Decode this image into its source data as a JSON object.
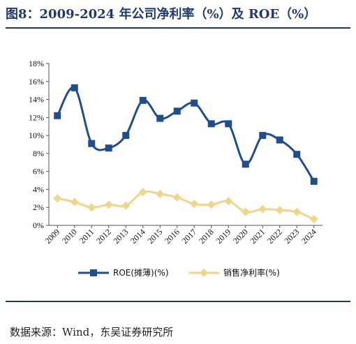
{
  "title": "图8：2009-2024 年公司净利率（%）及 ROE（%）",
  "source": "数据来源：Wind，东吴证券研究所",
  "colors": {
    "roe": "#1f4e8c",
    "net_margin": "#f0d68a",
    "axis": "#555555",
    "rule": "#1f3b6e"
  },
  "chart_data": {
    "type": "line",
    "x": [
      "2009",
      "2010",
      "2011",
      "2012",
      "2013",
      "2014",
      "2015",
      "2016",
      "2017",
      "2018",
      "2019",
      "2020",
      "2021",
      "2022",
      "2023",
      "2024"
    ],
    "series": [
      {
        "name": "ROE(摊薄)(%)",
        "values": [
          12.2,
          15.3,
          9.1,
          8.6,
          10.0,
          13.9,
          11.9,
          12.7,
          13.6,
          11.3,
          11.3,
          6.8,
          10.0,
          9.5,
          7.9,
          4.9
        ]
      },
      {
        "name": "销售净利率(%)",
        "values": [
          3.0,
          2.6,
          2.0,
          2.3,
          2.2,
          3.7,
          3.5,
          3.1,
          2.4,
          2.3,
          2.7,
          1.5,
          1.8,
          1.7,
          1.5,
          0.7
        ]
      }
    ],
    "y_ticks": [
      "0%",
      "2%",
      "4%",
      "6%",
      "8%",
      "10%",
      "12%",
      "14%",
      "16%",
      "18%"
    ],
    "ylim": [
      0,
      18
    ],
    "grid": false,
    "legend_position": "bottom"
  }
}
